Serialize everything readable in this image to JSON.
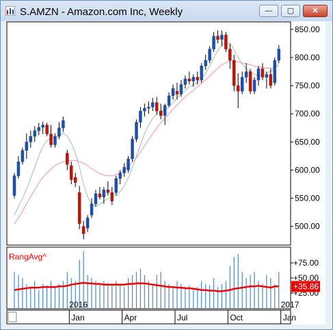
{
  "window": {
    "title": "S.AMZN - Amazon.com Inc, Weekly",
    "buttons": {
      "minimize": "minimize-icon",
      "maximize": "maximize-icon",
      "close": "close-icon"
    }
  },
  "colors": {
    "up": "#1f4fa8",
    "down": "#b11a0d",
    "ma_fast": "#9fc39f",
    "ma_slow": "#ef8fb8",
    "rangavg_line": "#ee0000",
    "volume_bars": "#4f88c4",
    "value_badge": "#ee0000"
  },
  "chart_data": [
    {
      "type": "candlestick",
      "title": "S.AMZN - Amazon.com Inc, Weekly",
      "ylim": [
        468,
        862
      ],
      "y_ticks": [
        "850.00",
        "800.00",
        "750.00",
        "700.00",
        "650.00",
        "600.00",
        "550.00",
        "500.00"
      ],
      "x_labels": [
        "2016",
        "Jan",
        "Apr",
        "Jul",
        "Oct",
        "Jan",
        "2017"
      ],
      "x_label_weeks": {
        "2016": 14,
        "Jan": 14,
        "Apr": 27,
        "Jul": 40,
        "Oct": 53,
        "Jan2": 66,
        "2017": 66
      },
      "candles": [
        {
          "o": 555,
          "h": 595,
          "l": 550,
          "c": 590
        },
        {
          "o": 590,
          "h": 625,
          "l": 585,
          "c": 615
        },
        {
          "o": 615,
          "h": 640,
          "l": 610,
          "c": 635
        },
        {
          "o": 635,
          "h": 665,
          "l": 620,
          "c": 650
        },
        {
          "o": 650,
          "h": 670,
          "l": 640,
          "c": 660
        },
        {
          "o": 660,
          "h": 678,
          "l": 650,
          "c": 670
        },
        {
          "o": 670,
          "h": 684,
          "l": 662,
          "c": 676
        },
        {
          "o": 676,
          "h": 686,
          "l": 664,
          "c": 680
        },
        {
          "o": 680,
          "h": 684,
          "l": 660,
          "c": 664
        },
        {
          "o": 664,
          "h": 680,
          "l": 640,
          "c": 645
        },
        {
          "o": 645,
          "h": 665,
          "l": 640,
          "c": 660
        },
        {
          "o": 660,
          "h": 685,
          "l": 655,
          "c": 675
        },
        {
          "o": 675,
          "h": 695,
          "l": 668,
          "c": 688
        },
        {
          "o": 630,
          "h": 636,
          "l": 600,
          "c": 610
        },
        {
          "o": 608,
          "h": 615,
          "l": 575,
          "c": 583
        },
        {
          "o": 587,
          "h": 595,
          "l": 570,
          "c": 578
        },
        {
          "o": 560,
          "h": 572,
          "l": 495,
          "c": 505
        },
        {
          "o": 500,
          "h": 510,
          "l": 477,
          "c": 487
        },
        {
          "o": 497,
          "h": 520,
          "l": 490,
          "c": 515
        },
        {
          "o": 520,
          "h": 550,
          "l": 515,
          "c": 540
        },
        {
          "o": 540,
          "h": 565,
          "l": 535,
          "c": 558
        },
        {
          "o": 558,
          "h": 570,
          "l": 548,
          "c": 552
        },
        {
          "o": 552,
          "h": 570,
          "l": 540,
          "c": 565
        },
        {
          "o": 565,
          "h": 580,
          "l": 555,
          "c": 560
        },
        {
          "o": 560,
          "h": 570,
          "l": 538,
          "c": 545
        },
        {
          "o": 560,
          "h": 590,
          "l": 555,
          "c": 585
        },
        {
          "o": 585,
          "h": 600,
          "l": 575,
          "c": 595
        },
        {
          "o": 595,
          "h": 612,
          "l": 588,
          "c": 605
        },
        {
          "o": 600,
          "h": 625,
          "l": 595,
          "c": 620
        },
        {
          "o": 620,
          "h": 660,
          "l": 615,
          "c": 655
        },
        {
          "o": 655,
          "h": 690,
          "l": 650,
          "c": 685
        },
        {
          "o": 685,
          "h": 712,
          "l": 675,
          "c": 705
        },
        {
          "o": 705,
          "h": 718,
          "l": 695,
          "c": 710
        },
        {
          "o": 710,
          "h": 722,
          "l": 700,
          "c": 712
        },
        {
          "o": 712,
          "h": 728,
          "l": 705,
          "c": 720
        },
        {
          "o": 720,
          "h": 730,
          "l": 698,
          "c": 705
        },
        {
          "o": 705,
          "h": 718,
          "l": 690,
          "c": 697
        },
        {
          "o": 697,
          "h": 718,
          "l": 680,
          "c": 715
        },
        {
          "o": 715,
          "h": 738,
          "l": 712,
          "c": 732
        },
        {
          "o": 732,
          "h": 752,
          "l": 725,
          "c": 745
        },
        {
          "o": 740,
          "h": 755,
          "l": 725,
          "c": 735
        },
        {
          "o": 735,
          "h": 760,
          "l": 730,
          "c": 752
        },
        {
          "o": 752,
          "h": 768,
          "l": 745,
          "c": 762
        },
        {
          "o": 762,
          "h": 775,
          "l": 752,
          "c": 758
        },
        {
          "o": 758,
          "h": 770,
          "l": 748,
          "c": 765
        },
        {
          "o": 765,
          "h": 775,
          "l": 752,
          "c": 760
        },
        {
          "o": 760,
          "h": 790,
          "l": 755,
          "c": 785
        },
        {
          "o": 785,
          "h": 805,
          "l": 778,
          "c": 795
        },
        {
          "o": 795,
          "h": 820,
          "l": 790,
          "c": 815
        },
        {
          "o": 815,
          "h": 845,
          "l": 810,
          "c": 838
        },
        {
          "o": 838,
          "h": 848,
          "l": 825,
          "c": 832
        },
        {
          "o": 832,
          "h": 848,
          "l": 820,
          "c": 840
        },
        {
          "o": 840,
          "h": 845,
          "l": 810,
          "c": 815
        },
        {
          "o": 815,
          "h": 825,
          "l": 780,
          "c": 795
        },
        {
          "o": 795,
          "h": 805,
          "l": 740,
          "c": 750
        },
        {
          "o": 750,
          "h": 772,
          "l": 710,
          "c": 740
        },
        {
          "o": 740,
          "h": 775,
          "l": 735,
          "c": 765
        },
        {
          "o": 765,
          "h": 790,
          "l": 755,
          "c": 775
        },
        {
          "o": 775,
          "h": 780,
          "l": 735,
          "c": 740
        },
        {
          "o": 740,
          "h": 765,
          "l": 735,
          "c": 760
        },
        {
          "o": 760,
          "h": 785,
          "l": 750,
          "c": 780
        },
        {
          "o": 780,
          "h": 790,
          "l": 760,
          "c": 765
        },
        {
          "o": 765,
          "h": 775,
          "l": 745,
          "c": 770
        },
        {
          "o": 770,
          "h": 780,
          "l": 745,
          "c": 750
        },
        {
          "o": 755,
          "h": 800,
          "l": 750,
          "c": 795
        },
        {
          "o": 795,
          "h": 822,
          "l": 790,
          "c": 815
        }
      ],
      "ma_fast": [
        520,
        535,
        550,
        567,
        585,
        605,
        625,
        642,
        652,
        658,
        658,
        660,
        666,
        660,
        648,
        630,
        605,
        575,
        552,
        540,
        535,
        540,
        545,
        550,
        552,
        555,
        562,
        572,
        586,
        605,
        625,
        645,
        665,
        680,
        692,
        700,
        705,
        707,
        712,
        720,
        728,
        735,
        742,
        748,
        752,
        756,
        762,
        772,
        785,
        800,
        812,
        822,
        826,
        824,
        814,
        800,
        788,
        780,
        775,
        770,
        768,
        770,
        773,
        775,
        780,
        790
      ],
      "ma_slow": [
        505,
        515,
        527,
        540,
        553,
        565,
        577,
        587,
        595,
        602,
        608,
        612,
        615,
        616,
        617,
        617,
        615,
        612,
        608,
        603,
        598,
        594,
        591,
        590,
        590,
        592,
        595,
        600,
        606,
        614,
        622,
        632,
        643,
        654,
        665,
        675,
        684,
        692,
        700,
        708,
        716,
        723,
        730,
        736,
        742,
        748,
        754,
        760,
        767,
        774,
        781,
        787,
        791,
        794,
        794,
        792,
        790,
        789,
        787,
        785,
        783,
        782,
        781,
        781,
        782,
        785
      ]
    },
    {
      "type": "bar",
      "title": "RangAvg^",
      "ylim": [
        0,
        100
      ],
      "y_ticks": [
        "+75.00",
        "+50.00",
        "+25.00"
      ],
      "value_label": "+35.86",
      "range_values": [
        60,
        55,
        50,
        40,
        35,
        45,
        30,
        40,
        38,
        45,
        35,
        40,
        45,
        60,
        50,
        45,
        80,
        95,
        55,
        50,
        45,
        40,
        45,
        42,
        38,
        45,
        40,
        35,
        50,
        55,
        60,
        65,
        55,
        45,
        40,
        55,
        60,
        45,
        40,
        35,
        45,
        40,
        35,
        38,
        30,
        35,
        45,
        40,
        38,
        50,
        35,
        40,
        45,
        70,
        85,
        90,
        60,
        50,
        55,
        60,
        45,
        40,
        55,
        50,
        40,
        60
      ],
      "avg_values": [
        30,
        31,
        32,
        33,
        34,
        34,
        34,
        35,
        35,
        35,
        35,
        36,
        36,
        37,
        39,
        40,
        41,
        42,
        41,
        41,
        40,
        40,
        39,
        39,
        39,
        39,
        39,
        39,
        40,
        40,
        41,
        41,
        41,
        40,
        39,
        38,
        37,
        36,
        35,
        35,
        34,
        34,
        33,
        33,
        32,
        31,
        30,
        30,
        29,
        29,
        28,
        28,
        29,
        30,
        32,
        33,
        34,
        35,
        36,
        36,
        37,
        36,
        35,
        34,
        36,
        36
      ]
    }
  ]
}
